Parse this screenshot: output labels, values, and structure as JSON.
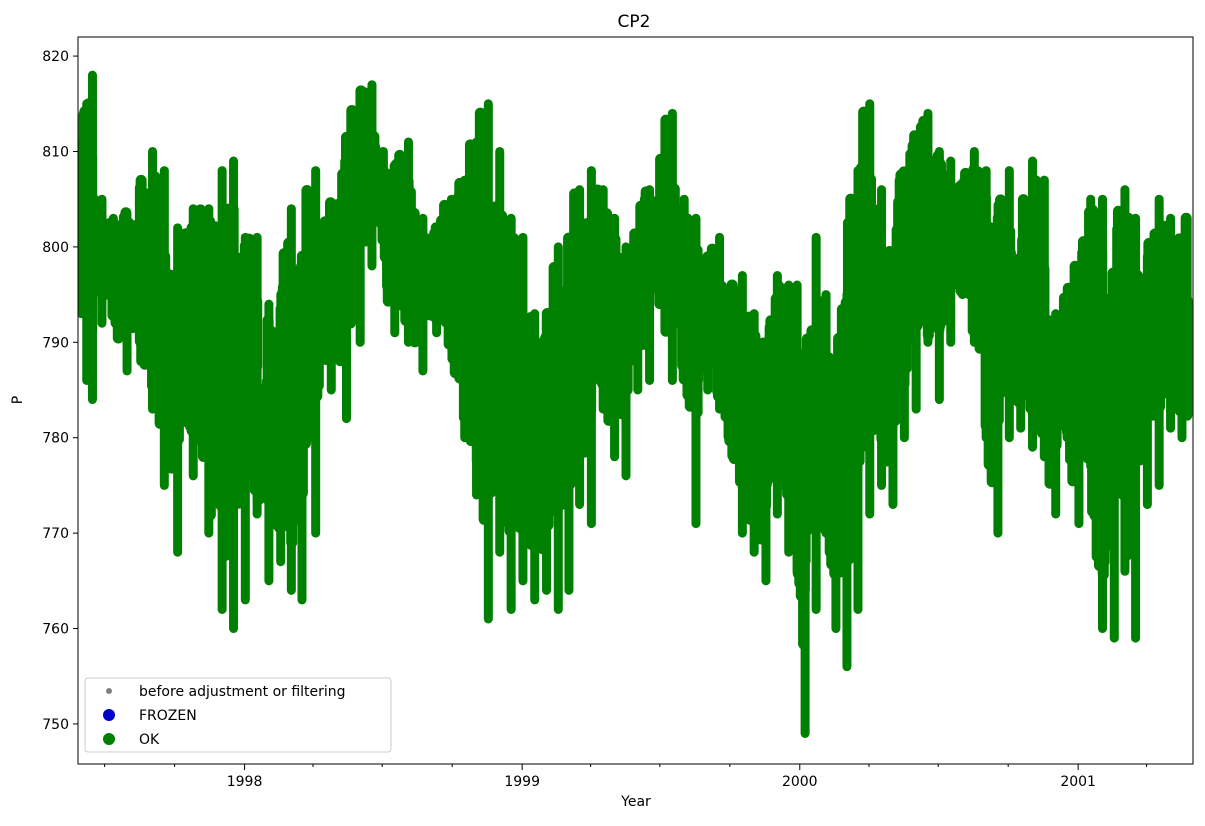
{
  "chart_data": {
    "type": "scatter",
    "title": "CP2",
    "xlabel": "Year",
    "ylabel": "P",
    "x_start": "1997-05-27",
    "x_end": "2001-06-01",
    "xlim": [
      "1997-05-27",
      "2001-06-01"
    ],
    "ylim": [
      745.8,
      822.0
    ],
    "x_ticks": [
      "1998-01-01",
      "1999-01-01",
      "2000-01-01",
      "2001-01-01"
    ],
    "x_tick_labels": [
      "1998",
      "1999",
      "2000",
      "2001"
    ],
    "y_ticks": [
      750,
      760,
      770,
      780,
      790,
      800,
      810,
      820
    ],
    "y_tick_labels": [
      "750",
      "760",
      "770",
      "780",
      "790",
      "800",
      "810",
      "820"
    ],
    "grid": false,
    "legend_position": "lower-left",
    "legend": [
      {
        "label": "before adjustment or filtering",
        "color": "#808080",
        "marker": "small-dot"
      },
      {
        "label": "FROZEN",
        "color": "#0000cc",
        "marker": "dot"
      },
      {
        "label": "OK",
        "color": "#008000",
        "marker": "dot"
      }
    ],
    "series": [
      {
        "name": "OK",
        "color": "#008000",
        "x": [
          "1997-05-27",
          "1997-06-05",
          "1997-06-10",
          "1997-06-20",
          "1997-07-05",
          "1997-07-20",
          "1997-08-10",
          "1997-08-25",
          "1997-09-10",
          "1997-09-25",
          "1997-10-15",
          "1997-11-05",
          "1997-11-25",
          "1997-12-10",
          "1997-12-25",
          "1998-01-10",
          "1998-01-25",
          "1998-02-10",
          "1998-02-25",
          "1998-03-10",
          "1998-03-25",
          "1998-04-15",
          "1998-05-05",
          "1998-05-25",
          "1998-06-10",
          "1998-06-25",
          "1998-07-10",
          "1998-07-25",
          "1998-08-15",
          "1998-09-01",
          "1998-09-20",
          "1998-10-10",
          "1998-10-25",
          "1998-11-10",
          "1998-11-25",
          "1998-12-10",
          "1998-12-25",
          "1999-01-10",
          "1999-01-25",
          "1999-02-10",
          "1999-02-25",
          "1999-03-10",
          "1999-03-25",
          "1999-04-10",
          "1999-04-25",
          "1999-05-10",
          "1999-05-25",
          "1999-06-10",
          "1999-06-25",
          "1999-07-10",
          "1999-07-25",
          "1999-08-10",
          "1999-08-25",
          "1999-09-10",
          "1999-09-25",
          "1999-10-10",
          "1999-10-25",
          "1999-11-10",
          "1999-11-25",
          "1999-12-10",
          "1999-12-25",
          "2000-01-01",
          "2000-01-15",
          "2000-01-30",
          "2000-02-10",
          "2000-02-25",
          "2000-03-10",
          "2000-03-25",
          "2000-04-10",
          "2000-04-25",
          "2000-05-10",
          "2000-05-25",
          "2000-06-10",
          "2000-06-25",
          "2000-07-10",
          "2000-07-25",
          "2000-08-10",
          "2000-08-25",
          "2000-09-10",
          "2000-09-25",
          "2000-10-10",
          "2000-10-25",
          "2000-11-10",
          "2000-11-25",
          "2000-12-10",
          "2000-12-25",
          "2001-01-10",
          "2001-01-25",
          "2001-02-10",
          "2001-02-25",
          "2001-03-10",
          "2001-03-25",
          "2001-04-10",
          "2001-04-25",
          "2001-05-10",
          "2001-05-25"
        ],
        "low": [
          793,
          786,
          784,
          792,
          793,
          787,
          788,
          783,
          775,
          768,
          776,
          770,
          762,
          760,
          763,
          772,
          765,
          767,
          764,
          763,
          770,
          785,
          782,
          790,
          798,
          803,
          791,
          790,
          787,
          791,
          790,
          780,
          774,
          761,
          768,
          762,
          765,
          763,
          764,
          762,
          764,
          773,
          771,
          783,
          778,
          776,
          785,
          786,
          795,
          786,
          790,
          771,
          785,
          783,
          780,
          770,
          768,
          765,
          772,
          768,
          766,
          749,
          762,
          770,
          760,
          756,
          762,
          772,
          775,
          773,
          780,
          783,
          790,
          784,
          790,
          795,
          790,
          780,
          770,
          780,
          781,
          779,
          778,
          772,
          780,
          771,
          777,
          760,
          759,
          766,
          759,
          773,
          775,
          781,
          780,
          777
        ],
        "high": [
          811,
          815,
          818,
          805,
          803,
          803,
          806,
          810,
          808,
          802,
          804,
          804,
          808,
          809,
          801,
          801,
          794,
          791,
          804,
          795,
          808,
          803,
          807,
          816,
          817,
          810,
          808,
          811,
          803,
          802,
          805,
          807,
          811,
          815,
          810,
          803,
          801,
          793,
          790,
          800,
          800,
          806,
          808,
          806,
          803,
          800,
          800,
          806,
          805,
          814,
          805,
          803,
          798,
          801,
          795,
          797,
          793,
          790,
          797,
          796,
          796,
          775,
          801,
          795,
          788,
          795,
          808,
          815,
          806,
          799,
          807,
          811,
          814,
          810,
          809,
          806,
          810,
          808,
          802,
          808,
          797,
          809,
          807,
          793,
          794,
          797,
          805,
          805,
          795,
          806,
          803,
          799,
          805,
          803,
          800,
          806
        ],
        "marker": "dot"
      }
    ]
  }
}
